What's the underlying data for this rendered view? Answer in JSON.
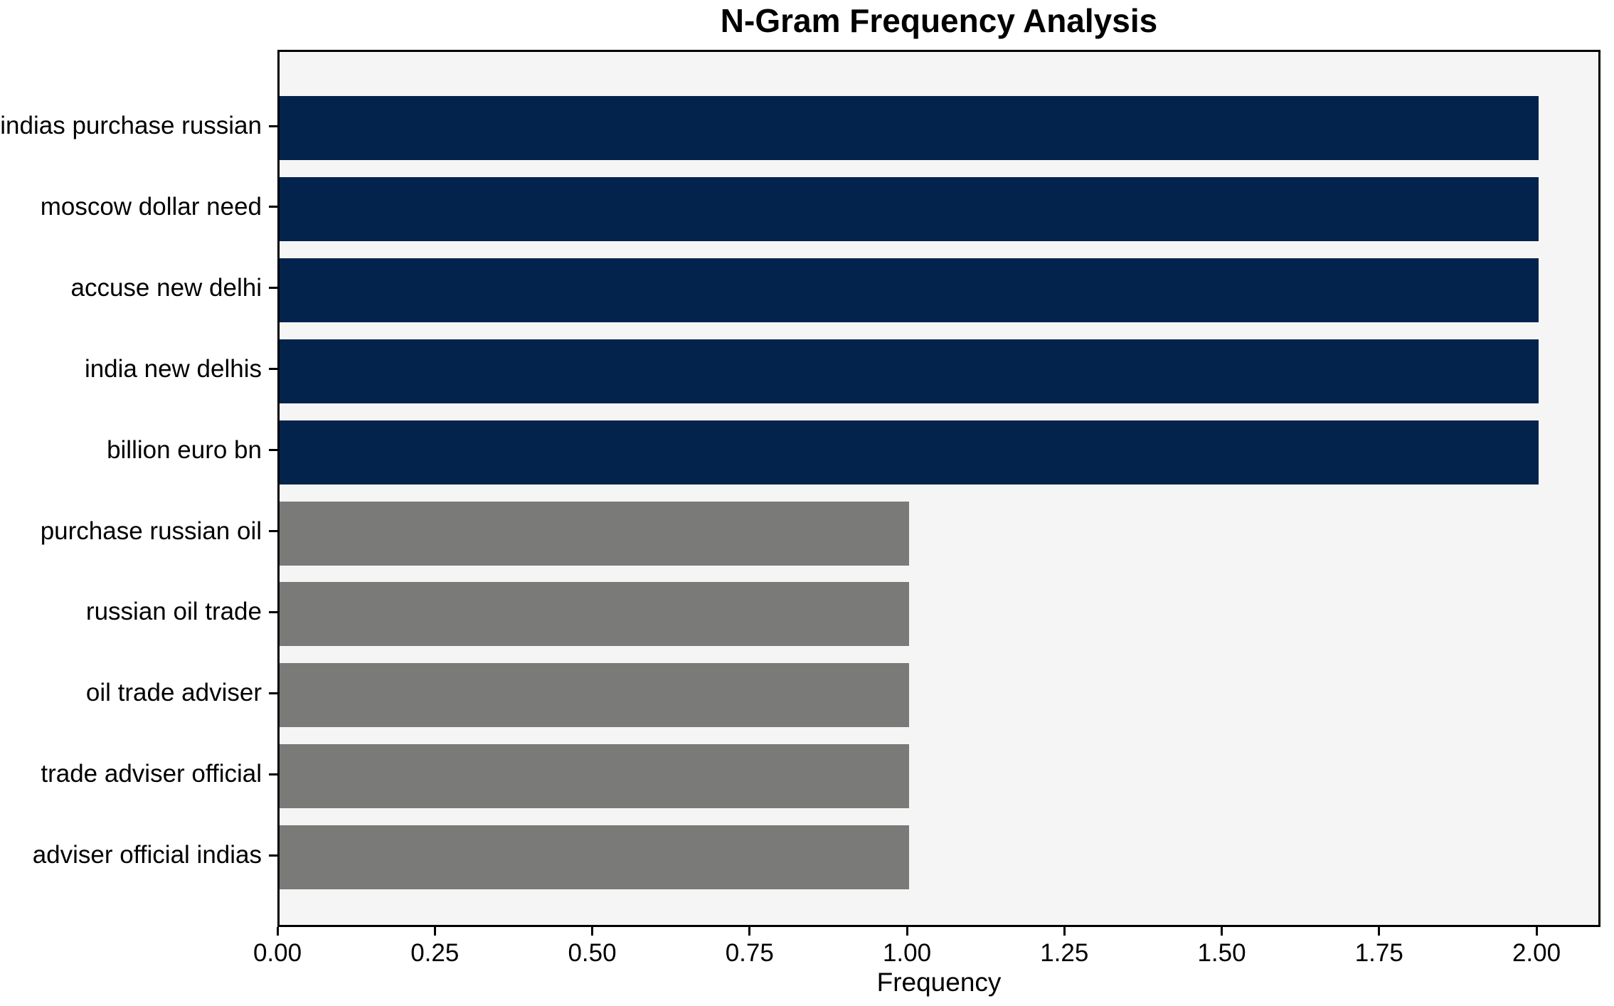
{
  "chart_data": {
    "type": "bar",
    "orientation": "horizontal",
    "title": "N-Gram Frequency Analysis",
    "xlabel": "Frequency",
    "ylabel": "",
    "categories": [
      "indias purchase russian",
      "moscow dollar need",
      "accuse new delhi",
      "india new delhis",
      "billion euro bn",
      "purchase russian oil",
      "russian oil trade",
      "oil trade adviser",
      "trade adviser official",
      "adviser official indias"
    ],
    "values": [
      2,
      2,
      2,
      2,
      2,
      1,
      1,
      1,
      1,
      1
    ],
    "bar_colors": [
      "#03234c",
      "#03234c",
      "#03234c",
      "#03234c",
      "#03234c",
      "#7a7a78",
      "#7a7a78",
      "#7a7a78",
      "#7a7a78",
      "#7a7a78"
    ],
    "xlim": [
      0,
      2.1
    ],
    "xticks": [
      0.0,
      0.25,
      0.5,
      0.75,
      1.0,
      1.25,
      1.5,
      1.75,
      2.0
    ],
    "xtick_labels": [
      "0.00",
      "0.25",
      "0.50",
      "0.75",
      "1.00",
      "1.25",
      "1.50",
      "1.75",
      "2.00"
    ],
    "grid": false,
    "legend": null,
    "colors": {
      "highlight_bar": "#03234c",
      "default_bar": "#7a7a78",
      "plot_background": "#f5f5f5",
      "frame": "#000000",
      "text": "#000000"
    }
  }
}
